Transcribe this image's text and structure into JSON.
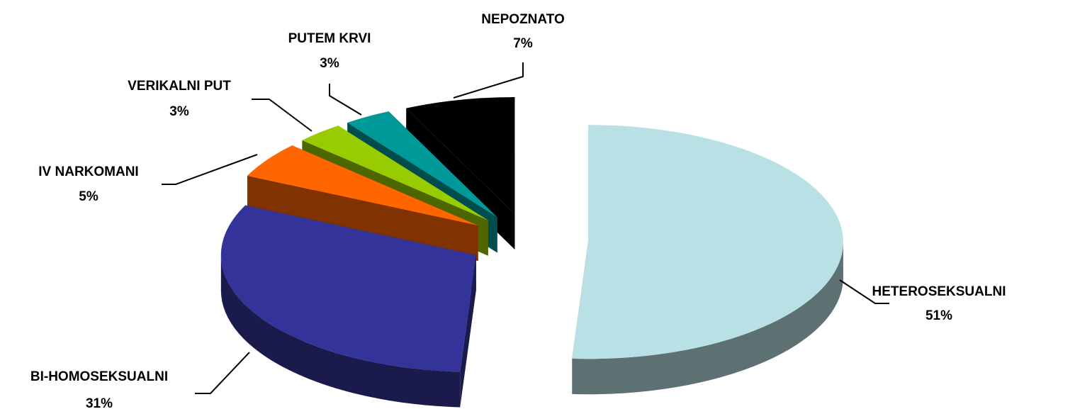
{
  "chart_data": {
    "type": "pie3d",
    "categories": [
      "HETEROSEKSUALNI",
      "BI-HOMOSEKSUALNI",
      "IV NARKOMANI",
      "VERIKALNI PUT",
      "PUTEM KRVI",
      "NEPOZNATO"
    ],
    "values": [
      51,
      31,
      5,
      3,
      3,
      7
    ],
    "value_labels": [
      "51%",
      "31%",
      "5%",
      "3%",
      "3%",
      "7%"
    ],
    "colors": [
      "#b9e0e4",
      "#333399",
      "#ff6600",
      "#99cc00",
      "#009999",
      "#000000"
    ]
  }
}
